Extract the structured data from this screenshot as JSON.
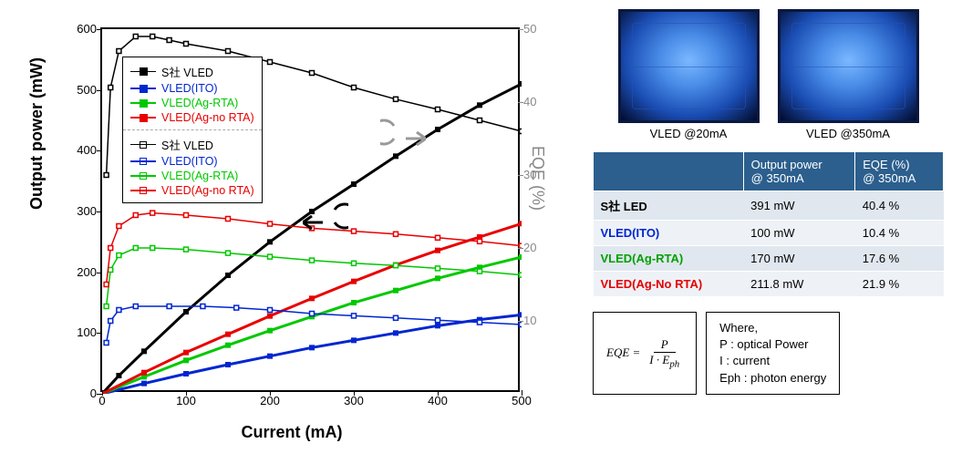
{
  "chart": {
    "type": "dual-axis-line",
    "x_label": "Current (mA)",
    "y_label_left": "Output power (mW)",
    "y_label_right": "EQE (%)",
    "xlim": [
      0,
      500
    ],
    "ylim_left": [
      0,
      600
    ],
    "ylim_right": [
      0,
      50
    ],
    "x_ticks": [
      0,
      100,
      200,
      300,
      400,
      500
    ],
    "y_ticks_left": [
      0,
      100,
      200,
      300,
      400,
      500,
      600
    ],
    "y_ticks_right": [
      10,
      20,
      30,
      40,
      50
    ],
    "background_color": "#ffffff",
    "border_color": "#000000",
    "font_family": "Arial",
    "label_fontsize": 18,
    "tick_fontsize": 13,
    "series_power": [
      {
        "id": "s_power",
        "label": "S社   VLED",
        "color": "#000000",
        "marker": "filled-square",
        "points": [
          [
            0,
            0
          ],
          [
            20,
            30
          ],
          [
            50,
            70
          ],
          [
            100,
            135
          ],
          [
            150,
            195
          ],
          [
            200,
            250
          ],
          [
            250,
            300
          ],
          [
            300,
            345
          ],
          [
            350,
            391
          ],
          [
            400,
            435
          ],
          [
            450,
            475
          ],
          [
            500,
            510
          ]
        ]
      },
      {
        "id": "ito_power",
        "label": "VLED(ITO)",
        "color": "#0026d0",
        "marker": "filled-square",
        "points": [
          [
            0,
            0
          ],
          [
            50,
            17
          ],
          [
            100,
            33
          ],
          [
            150,
            48
          ],
          [
            200,
            62
          ],
          [
            250,
            76
          ],
          [
            300,
            88
          ],
          [
            350,
            100
          ],
          [
            400,
            112
          ],
          [
            450,
            122
          ],
          [
            500,
            130
          ]
        ]
      },
      {
        "id": "agrta_power",
        "label": "VLED(Ag-RTA)",
        "color": "#00c800",
        "marker": "filled-square",
        "points": [
          [
            0,
            0
          ],
          [
            50,
            28
          ],
          [
            100,
            55
          ],
          [
            150,
            80
          ],
          [
            200,
            104
          ],
          [
            250,
            127
          ],
          [
            300,
            150
          ],
          [
            350,
            170
          ],
          [
            400,
            190
          ],
          [
            450,
            208
          ],
          [
            500,
            225
          ]
        ]
      },
      {
        "id": "agno_power",
        "label": "VLED(Ag-no RTA)",
        "color": "#e80000",
        "marker": "filled-square",
        "points": [
          [
            0,
            0
          ],
          [
            50,
            35
          ],
          [
            100,
            68
          ],
          [
            150,
            98
          ],
          [
            200,
            128
          ],
          [
            250,
            157
          ],
          [
            300,
            185
          ],
          [
            350,
            212
          ],
          [
            400,
            236
          ],
          [
            450,
            258
          ],
          [
            500,
            280
          ]
        ]
      }
    ],
    "series_eqe": [
      {
        "id": "s_eqe",
        "label": "S社   VLED",
        "color": "#000000",
        "marker": "open-square",
        "points": [
          [
            5,
            30
          ],
          [
            10,
            42
          ],
          [
            20,
            47
          ],
          [
            40,
            49
          ],
          [
            60,
            49
          ],
          [
            80,
            48.5
          ],
          [
            100,
            48
          ],
          [
            150,
            47
          ],
          [
            200,
            45.5
          ],
          [
            250,
            44
          ],
          [
            300,
            42
          ],
          [
            350,
            40.4
          ],
          [
            400,
            39
          ],
          [
            450,
            37.5
          ],
          [
            500,
            36
          ]
        ]
      },
      {
        "id": "ito_eqe",
        "label": "VLED(ITO)",
        "color": "#0026d0",
        "marker": "open-square",
        "points": [
          [
            5,
            7
          ],
          [
            10,
            10
          ],
          [
            20,
            11.5
          ],
          [
            40,
            12
          ],
          [
            80,
            12
          ],
          [
            120,
            12
          ],
          [
            160,
            11.8
          ],
          [
            200,
            11.5
          ],
          [
            250,
            11
          ],
          [
            300,
            10.7
          ],
          [
            350,
            10.4
          ],
          [
            400,
            10.1
          ],
          [
            450,
            9.8
          ],
          [
            500,
            9.5
          ]
        ]
      },
      {
        "id": "agrta_eqe",
        "label": "VLED(Ag-RTA)",
        "color": "#00c800",
        "marker": "open-square",
        "points": [
          [
            5,
            12
          ],
          [
            10,
            17
          ],
          [
            20,
            19
          ],
          [
            40,
            20
          ],
          [
            60,
            20
          ],
          [
            100,
            19.8
          ],
          [
            150,
            19.3
          ],
          [
            200,
            18.8
          ],
          [
            250,
            18.3
          ],
          [
            300,
            17.9
          ],
          [
            350,
            17.6
          ],
          [
            400,
            17.2
          ],
          [
            450,
            16.8
          ],
          [
            500,
            16.3
          ]
        ]
      },
      {
        "id": "agno_eqe",
        "label": "VLED(Ag-no RTA)",
        "color": "#e80000",
        "marker": "open-square",
        "points": [
          [
            5,
            15
          ],
          [
            10,
            20
          ],
          [
            20,
            23
          ],
          [
            40,
            24.5
          ],
          [
            60,
            24.8
          ],
          [
            100,
            24.5
          ],
          [
            150,
            24
          ],
          [
            200,
            23.3
          ],
          [
            250,
            22.7
          ],
          [
            300,
            22.3
          ],
          [
            350,
            21.9
          ],
          [
            400,
            21.4
          ],
          [
            450,
            20.9
          ],
          [
            500,
            20.3
          ]
        ]
      }
    ]
  },
  "photos": [
    {
      "caption": "VLED  @20mA"
    },
    {
      "caption": "VLED  @350mA"
    }
  ],
  "table": {
    "header_bg": "#2c5f8d",
    "header_fg": "#ffffff",
    "row_bg_odd": "#e0e7ef",
    "row_bg_even": "#eef2f7",
    "columns": [
      "",
      "Output power @ 350mA",
      "EQE (%) @ 350mA"
    ],
    "rows": [
      {
        "label": "S社   LED",
        "color": "#000000",
        "power": "391 mW",
        "eqe": "40.4 %"
      },
      {
        "label": "VLED(ITO)",
        "color": "#0026d0",
        "power": "100 mW",
        "eqe": "10.4 %"
      },
      {
        "label": "VLED(Ag-RTA)",
        "color": "#00a000",
        "power": "170 mW",
        "eqe": "17.6 %"
      },
      {
        "label": "VLED(Ag-No RTA)",
        "color": "#e80000",
        "power": "211.8 mW",
        "eqe": "21.9 %"
      }
    ]
  },
  "equation": {
    "lhs": "EQE =",
    "num": "P",
    "den": "I · E",
    "den_sub": "ph"
  },
  "where": {
    "title": "Where,",
    "lines": [
      "P : optical Power",
      "I : current",
      "Eph : photon energy"
    ]
  }
}
